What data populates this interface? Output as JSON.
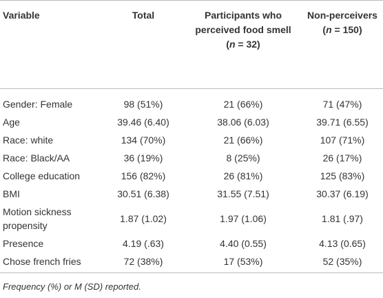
{
  "table": {
    "header": [
      {
        "label": "Variable"
      },
      {
        "label": "Total"
      },
      {
        "label": "Participants who perceived food smell",
        "pre": "(",
        "n": "n",
        "post": " = 32)"
      },
      {
        "label": "Non-perceivers",
        "pre": "(",
        "n": "n",
        "post": " = 150)"
      }
    ],
    "rows": [
      [
        "Gender: Female",
        "98 (51%)",
        "21 (66%)",
        "71 (47%)"
      ],
      [
        "Age",
        "39.46 (6.40)",
        "38.06 (6.03)",
        "39.71 (6.55)"
      ],
      [
        "Race: white",
        "134 (70%)",
        "21 (66%)",
        "107 (71%)"
      ],
      [
        "Race: Black/AA",
        "36 (19%)",
        "8 (25%)",
        "26 (17%)"
      ],
      [
        "College education",
        "156 (82%)",
        "26 (81%)",
        "125 (83%)"
      ],
      [
        "BMI",
        "30.51 (6.38)",
        "31.55 (7.51)",
        "30.37 (6.19)"
      ],
      [
        "Motion sickness propensity",
        "1.87 (1.02)",
        "1.97 (1.06)",
        "1.81 (.97)"
      ],
      [
        "Presence",
        "4.19 (.63)",
        "4.40 (0.55)",
        "4.13 (0.65)"
      ],
      [
        "Chose french fries",
        "72 (38%)",
        "17 (53%)",
        "52 (35%)"
      ]
    ],
    "footnote": "Frequency (%) or M (SD) reported."
  }
}
